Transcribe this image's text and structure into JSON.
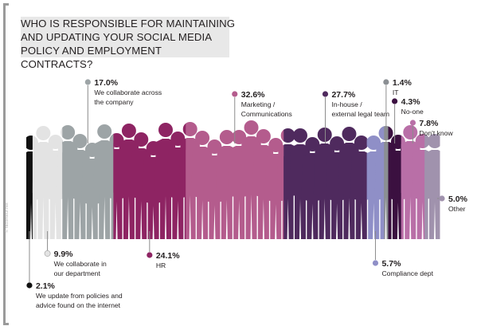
{
  "title_lines": [
    "WHO IS RESPONSIBLE FOR MAINTAINING",
    "AND UPDATING YOUR SOCIAL MEDIA",
    "POLICY AND EMPLOYMENT CONTRACTS?"
  ],
  "source_text": "© raconteur.net",
  "chart_data": {
    "type": "bar",
    "categories": [
      "We update from policies and advice found on the internet",
      "We collaborate in our department",
      "We collaborate across the company",
      "HR",
      "Marketing / Communications",
      "In-house / external legal team",
      "Compliance dept",
      "IT",
      "No-one",
      "Don't know",
      "Other"
    ],
    "values": [
      2.1,
      9.9,
      17.0,
      24.1,
      32.6,
      27.7,
      5.7,
      1.4,
      4.3,
      7.8,
      5.0
    ],
    "unit": "%",
    "colors": [
      "#111111",
      "#e3e3e3",
      "#9da4a6",
      "#8e2463",
      "#b45c8d",
      "#4f2a5e",
      "#8f8fc7",
      "#8b8f93",
      "#3b1040",
      "#b96fa7",
      "#a092ad"
    ],
    "annotations": [
      {
        "value": "2.1%",
        "lines": [
          "We update from policies and",
          "advice found on the internet"
        ]
      },
      {
        "value": "9.9%",
        "lines": [
          "We collaborate in",
          "our department"
        ]
      },
      {
        "value": "17.0%",
        "lines": [
          "We collaborate across",
          "the company"
        ]
      },
      {
        "value": "24.1%",
        "lines": [
          "HR"
        ]
      },
      {
        "value": "32.6%",
        "lines": [
          "Marketing /",
          "Communications"
        ]
      },
      {
        "value": "27.7%",
        "lines": [
          "In-house /",
          "external legal team"
        ]
      },
      {
        "value": "5.7%",
        "lines": [
          "Compliance dept"
        ]
      },
      {
        "value": "1.4%",
        "lines": [
          "IT"
        ]
      },
      {
        "value": "4.3%",
        "lines": [
          "No-one"
        ]
      },
      {
        "value": "7.8%",
        "lines": [
          "Don't know"
        ]
      },
      {
        "value": "5.0%",
        "lines": [
          "Other"
        ]
      }
    ]
  }
}
